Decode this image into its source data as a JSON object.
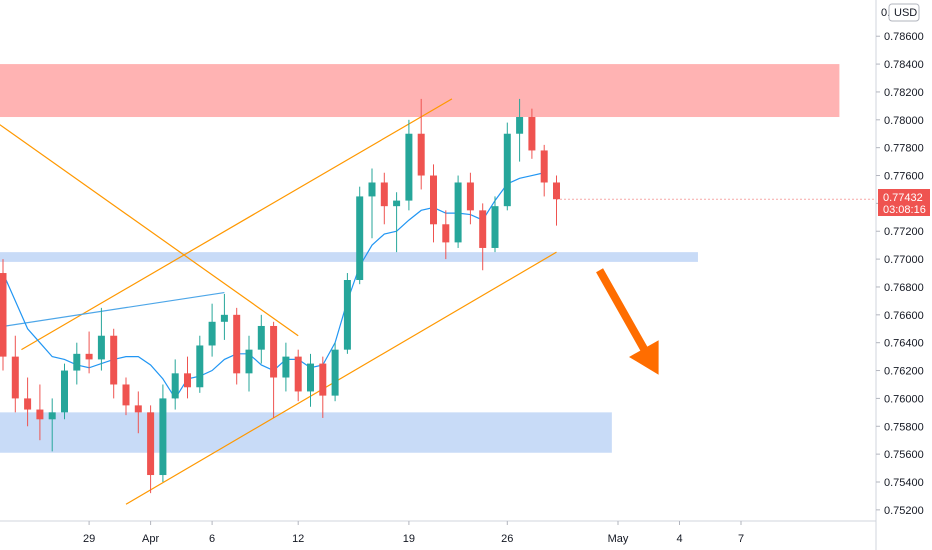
{
  "currency": "USD",
  "last_price_label": "0.77432",
  "countdown_label": "03:08:16",
  "chart_data": {
    "type": "candlestick",
    "title": "",
    "ylim": [
      0.7512,
      0.7886
    ],
    "y_tick_labels": [
      "0.78600",
      "0.78400",
      "0.78200",
      "0.78000",
      "0.77800",
      "0.77600",
      "0.77400",
      "0.77200",
      "0.77000",
      "0.76800",
      "0.76600",
      "0.76400",
      "0.76200",
      "0.76000",
      "0.75800",
      "0.75600",
      "0.75400",
      "0.75200"
    ],
    "top_partial_label": "0.",
    "x_tick_labels": [
      {
        "label": "29",
        "x": 7
      },
      {
        "label": "Apr",
        "x": 12
      },
      {
        "label": "6",
        "x": 17
      },
      {
        "label": "12",
        "x": 24
      },
      {
        "label": "19",
        "x": 33
      },
      {
        "label": "26",
        "x": 41
      },
      {
        "label": "May",
        "x": 50
      },
      {
        "label": "4",
        "x": 55
      },
      {
        "label": "7",
        "x": 60
      }
    ],
    "zones": [
      {
        "name": "resistance-zone",
        "color": "#ffb3b3",
        "x_from": -6,
        "x_to": 68,
        "y_from": 0.7802,
        "y_to": 0.784
      },
      {
        "name": "support-line-zone",
        "color": "#c8dbf7",
        "x_from": -6,
        "x_to": 56.5,
        "y_from": 0.7698,
        "y_to": 0.7705
      },
      {
        "name": "demand-zone",
        "color": "#c8dbf7",
        "x_from": -6,
        "x_to": 49.5,
        "y_from": 0.7561,
        "y_to": 0.759
      }
    ],
    "trendlines": [
      {
        "name": "upper-channel-line",
        "color": "#ff9800",
        "x1": 1.5,
        "y1": 0.7635,
        "x2": 36.5,
        "y2": 0.7815
      },
      {
        "name": "lower-channel-line",
        "color": "#ff9800",
        "x1": 10,
        "y1": 0.7524,
        "x2": 45,
        "y2": 0.7705
      },
      {
        "name": "falling-line",
        "color": "#ff9800",
        "x1": -0.5,
        "y1": 0.7798,
        "x2": 24,
        "y2": 0.7645
      },
      {
        "name": "blue-trendline",
        "color": "#4da6e8",
        "x1": -0.5,
        "y1": 0.7651,
        "x2": 18,
        "y2": 0.7676
      }
    ],
    "moving_average": {
      "name": "MA",
      "color": "#2196f3",
      "values": [
        0.769,
        0.767,
        0.765,
        0.764,
        0.763,
        0.7628,
        0.7624,
        0.7622,
        0.7625,
        0.7628,
        0.763,
        0.763,
        0.7624,
        0.7614,
        0.76,
        0.7614,
        0.7616,
        0.762,
        0.7628,
        0.7632,
        0.7632,
        0.7624,
        0.762,
        0.7628,
        0.7628,
        0.7622,
        0.7624,
        0.764,
        0.767,
        0.7695,
        0.771,
        0.7718,
        0.772,
        0.7728,
        0.7735,
        0.7737,
        0.7733,
        0.7733,
        0.7732,
        0.7728,
        0.7742,
        0.7754,
        0.7758,
        0.776,
        0.7762
      ]
    },
    "annotation_arrow": {
      "name": "bearish-projection-arrow",
      "color": "#ff6d00",
      "x1": 48.5,
      "y1": 0.7692,
      "x2": 53.3,
      "y2": 0.7617
    },
    "candles": [
      {
        "x": 0,
        "o": 0.769,
        "h": 0.77,
        "l": 0.762,
        "c": 0.763
      },
      {
        "x": 1,
        "o": 0.763,
        "h": 0.7645,
        "l": 0.759,
        "c": 0.76
      },
      {
        "x": 2,
        "o": 0.76,
        "h": 0.7615,
        "l": 0.758,
        "c": 0.7592
      },
      {
        "x": 3,
        "o": 0.7592,
        "h": 0.761,
        "l": 0.757,
        "c": 0.7585
      },
      {
        "x": 4,
        "o": 0.7585,
        "h": 0.76,
        "l": 0.7562,
        "c": 0.759
      },
      {
        "x": 5,
        "o": 0.759,
        "h": 0.7625,
        "l": 0.7585,
        "c": 0.762
      },
      {
        "x": 6,
        "o": 0.762,
        "h": 0.764,
        "l": 0.761,
        "c": 0.7632
      },
      {
        "x": 7,
        "o": 0.7632,
        "h": 0.7648,
        "l": 0.7618,
        "c": 0.7628
      },
      {
        "x": 8,
        "o": 0.7628,
        "h": 0.7665,
        "l": 0.762,
        "c": 0.7645
      },
      {
        "x": 9,
        "o": 0.7645,
        "h": 0.765,
        "l": 0.76,
        "c": 0.761
      },
      {
        "x": 10,
        "o": 0.761,
        "h": 0.7615,
        "l": 0.7588,
        "c": 0.7595
      },
      {
        "x": 11,
        "o": 0.7595,
        "h": 0.7605,
        "l": 0.7575,
        "c": 0.759
      },
      {
        "x": 12,
        "o": 0.759,
        "h": 0.7595,
        "l": 0.7532,
        "c": 0.7545
      },
      {
        "x": 13,
        "o": 0.7545,
        "h": 0.761,
        "l": 0.754,
        "c": 0.76
      },
      {
        "x": 14,
        "o": 0.76,
        "h": 0.7628,
        "l": 0.7592,
        "c": 0.7618
      },
      {
        "x": 15,
        "o": 0.7618,
        "h": 0.763,
        "l": 0.76,
        "c": 0.7608
      },
      {
        "x": 16,
        "o": 0.7608,
        "h": 0.7645,
        "l": 0.7604,
        "c": 0.7638
      },
      {
        "x": 17,
        "o": 0.7638,
        "h": 0.7668,
        "l": 0.763,
        "c": 0.7655
      },
      {
        "x": 18,
        "o": 0.7655,
        "h": 0.7675,
        "l": 0.7642,
        "c": 0.766
      },
      {
        "x": 19,
        "o": 0.766,
        "h": 0.7665,
        "l": 0.761,
        "c": 0.7618
      },
      {
        "x": 20,
        "o": 0.7618,
        "h": 0.7645,
        "l": 0.7605,
        "c": 0.7635
      },
      {
        "x": 21,
        "o": 0.7635,
        "h": 0.766,
        "l": 0.7625,
        "c": 0.7652
      },
      {
        "x": 22,
        "o": 0.7652,
        "h": 0.7655,
        "l": 0.7586,
        "c": 0.7615
      },
      {
        "x": 23,
        "o": 0.7615,
        "h": 0.764,
        "l": 0.7605,
        "c": 0.763
      },
      {
        "x": 24,
        "o": 0.763,
        "h": 0.7635,
        "l": 0.7598,
        "c": 0.7605
      },
      {
        "x": 25,
        "o": 0.7605,
        "h": 0.7632,
        "l": 0.7594,
        "c": 0.7625
      },
      {
        "x": 26,
        "o": 0.7625,
        "h": 0.763,
        "l": 0.7586,
        "c": 0.7602
      },
      {
        "x": 27,
        "o": 0.7602,
        "h": 0.764,
        "l": 0.7598,
        "c": 0.7635
      },
      {
        "x": 28,
        "o": 0.7635,
        "h": 0.769,
        "l": 0.7632,
        "c": 0.7685
      },
      {
        "x": 29,
        "o": 0.7685,
        "h": 0.7752,
        "l": 0.7682,
        "c": 0.7745
      },
      {
        "x": 30,
        "o": 0.7745,
        "h": 0.7765,
        "l": 0.7715,
        "c": 0.7755
      },
      {
        "x": 31,
        "o": 0.7755,
        "h": 0.7762,
        "l": 0.7725,
        "c": 0.7738
      },
      {
        "x": 32,
        "o": 0.7738,
        "h": 0.7748,
        "l": 0.7705,
        "c": 0.7742
      },
      {
        "x": 33,
        "o": 0.7742,
        "h": 0.78,
        "l": 0.7735,
        "c": 0.779
      },
      {
        "x": 34,
        "o": 0.779,
        "h": 0.7815,
        "l": 0.775,
        "c": 0.776
      },
      {
        "x": 35,
        "o": 0.776,
        "h": 0.7768,
        "l": 0.7712,
        "c": 0.7725
      },
      {
        "x": 36,
        "o": 0.7725,
        "h": 0.7735,
        "l": 0.77,
        "c": 0.7712
      },
      {
        "x": 37,
        "o": 0.7712,
        "h": 0.776,
        "l": 0.7708,
        "c": 0.7755
      },
      {
        "x": 38,
        "o": 0.7755,
        "h": 0.7762,
        "l": 0.7725,
        "c": 0.7735
      },
      {
        "x": 39,
        "o": 0.7735,
        "h": 0.774,
        "l": 0.7692,
        "c": 0.7708
      },
      {
        "x": 40,
        "o": 0.7708,
        "h": 0.7745,
        "l": 0.7705,
        "c": 0.7738
      },
      {
        "x": 41,
        "o": 0.7738,
        "h": 0.7798,
        "l": 0.7735,
        "c": 0.779
      },
      {
        "x": 42,
        "o": 0.779,
        "h": 0.7815,
        "l": 0.777,
        "c": 0.7802
      },
      {
        "x": 43,
        "o": 0.7802,
        "h": 0.7808,
        "l": 0.7772,
        "c": 0.7778
      },
      {
        "x": 44,
        "o": 0.7778,
        "h": 0.7782,
        "l": 0.7745,
        "c": 0.7755
      },
      {
        "x": 45,
        "o": 0.7755,
        "h": 0.776,
        "l": 0.7724,
        "c": 0.7743
      }
    ]
  }
}
